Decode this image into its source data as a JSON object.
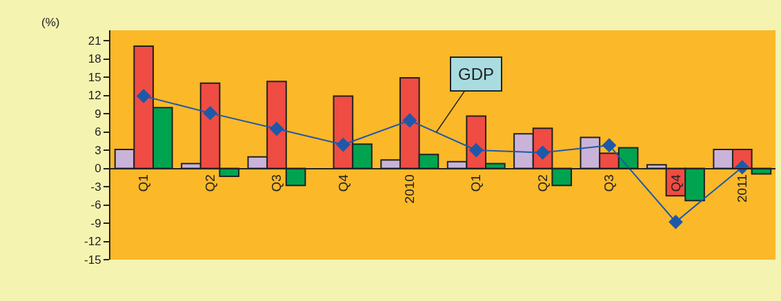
{
  "chart_data": {
    "type": "bar",
    "ylabel": "(%)",
    "categories": [
      "Q1",
      "Q2",
      "Q3",
      "Q4",
      "2010",
      "Q1",
      "Q2",
      "Q3",
      "Q4",
      "2011"
    ],
    "series": [
      {
        "color": "#c9b3d9",
        "values": [
          3.1,
          0.8,
          1.9,
          null,
          1.4,
          1.1,
          5.7,
          5.1,
          0.6,
          3.1
        ]
      },
      {
        "color": "#ef4c43",
        "values": [
          20.1,
          14.0,
          14.3,
          11.9,
          14.9,
          8.6,
          6.6,
          2.5,
          -4.5,
          3.1
        ]
      },
      {
        "color": "#00a350",
        "values": [
          10.0,
          -1.3,
          -2.8,
          4.0,
          2.3,
          0.8,
          -2.8,
          3.4,
          -5.3,
          -0.9
        ]
      },
      {
        "name": "GDP",
        "type": "line",
        "color": "#1f58a8",
        "marker": "diamond",
        "values": [
          11.9,
          9.1,
          6.5,
          3.9,
          7.9,
          3.0,
          2.6,
          3.8,
          -8.8,
          0.2
        ]
      }
    ],
    "ylim": [
      -15,
      22.7
    ],
    "yticks": [
      -15,
      -12,
      -9,
      -6,
      -3,
      0,
      3,
      6,
      9,
      12,
      15,
      18,
      21
    ],
    "grid": false
  }
}
